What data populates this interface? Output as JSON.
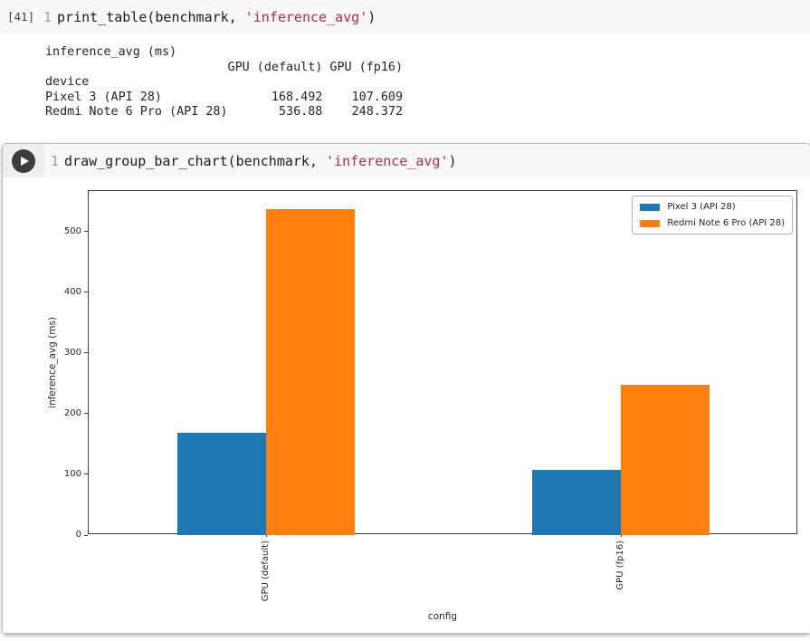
{
  "cell1": {
    "execution_label": "[41]",
    "line_number": "1",
    "code": {
      "pre": "print_table(benchmark, ",
      "string": "'inference_avg'",
      "post": ")"
    },
    "output": "inference_avg (ms)\n                         GPU (default) GPU (fp16)\ndevice\nPixel 3 (API 28)               168.492    107.609\nRedmi Note 6 Pro (API 28)       536.88    248.372"
  },
  "cell2": {
    "line_number": "1",
    "run_icon": "play",
    "code": {
      "pre": "draw_group_bar_chart(benchmark, ",
      "string": "'inference_avg'",
      "post": ")"
    }
  },
  "chart_data": {
    "type": "bar",
    "categories": [
      "GPU (default)",
      "GPU (fp16)"
    ],
    "series": [
      {
        "name": "Pixel 3 (API 28)",
        "color": "#1f77b4",
        "values": [
          168.492,
          107.609
        ]
      },
      {
        "name": "Redmi Note 6 Pro (API 28)",
        "color": "#ff7f0e",
        "values": [
          536.88,
          248.372
        ]
      }
    ],
    "xlabel": "config",
    "ylabel": "inference_avg (ms)",
    "yticks": [
      0,
      100,
      200,
      300,
      400,
      500
    ],
    "ylim": [
      0,
      567
    ],
    "grid": false,
    "legend_position": "upper right",
    "bar_group_width": 0.5
  },
  "colors": {
    "code_background": "#f7f7f7",
    "gutter_background": "#efefef",
    "string_token": "#b22a4d",
    "series_blue": "#1f77b4",
    "series_orange": "#ff7f0e"
  }
}
